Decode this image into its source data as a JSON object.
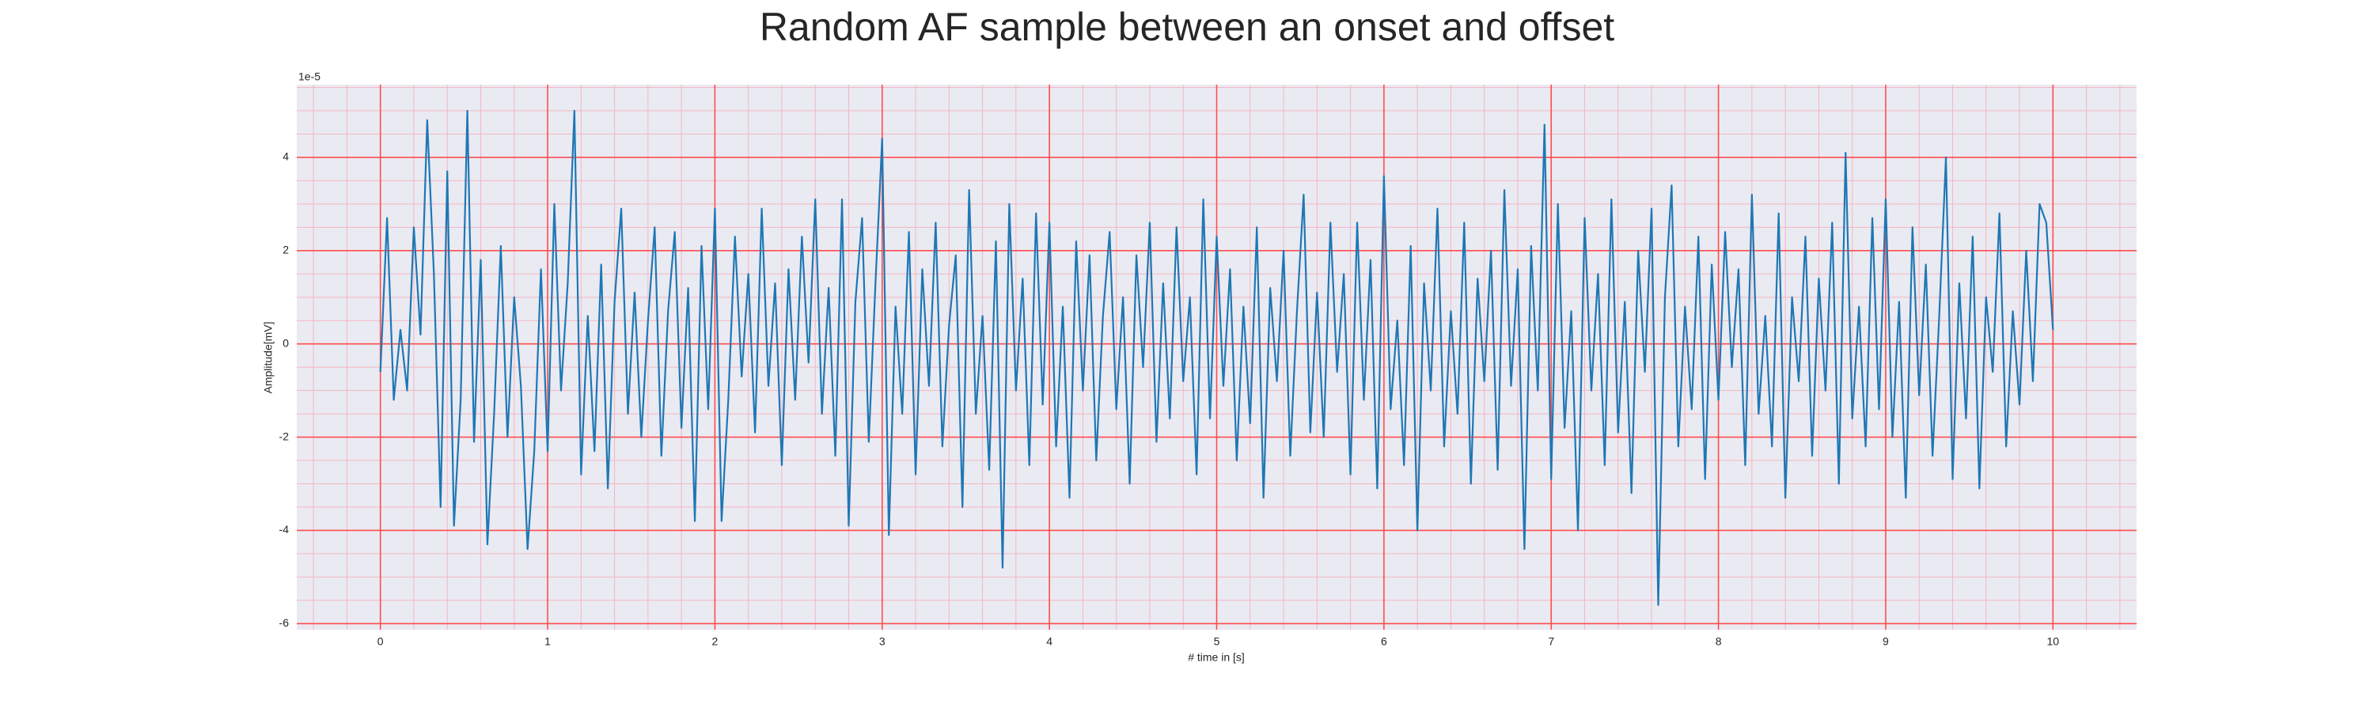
{
  "chart_data": {
    "type": "line",
    "title": "Random AF sample between an onset and offset",
    "xlabel": "# time in [s]",
    "ylabel": "Amplitude[mV]",
    "y_offset_label": "1e-5",
    "xlim": [
      -0.5,
      10.5
    ],
    "ylim": [
      -6.13,
      5.56
    ],
    "xticks": [
      0,
      1,
      2,
      3,
      4,
      5,
      6,
      7,
      8,
      9,
      10
    ],
    "yticks": [
      -6,
      -4,
      -2,
      0,
      2,
      4
    ],
    "xminorticks": [
      -0.4,
      -0.2,
      0.2,
      0.4,
      0.6,
      0.8,
      1.2,
      1.4,
      1.6,
      1.8,
      2.2,
      2.4,
      2.6,
      2.8,
      3.2,
      3.4,
      3.6,
      3.8,
      4.2,
      4.4,
      4.6,
      4.8,
      5.2,
      5.4,
      5.6,
      5.8,
      6.2,
      6.4,
      6.6,
      6.8,
      7.2,
      7.4,
      7.6,
      7.8,
      8.2,
      8.4,
      8.6,
      8.8,
      9.2,
      9.4,
      9.6,
      9.8,
      10.2,
      10.4
    ],
    "yminorticks": [
      -5.5,
      -5,
      -4.5,
      -3.5,
      -3,
      -2.5,
      -1.5,
      -1,
      -0.5,
      0.5,
      1,
      1.5,
      2.5,
      3,
      3.5,
      4.5,
      5,
      5.5
    ],
    "grid": true,
    "minor_grid": true,
    "grid_color": "#ff4d4d",
    "minor_grid_color": "#f4b6c2",
    "background": "#eaeaf2",
    "series": [
      {
        "color": "#1f77b4",
        "x": [
          0,
          0.04,
          0.08,
          0.12,
          0.16,
          0.2,
          0.24,
          0.28,
          0.32,
          0.36,
          0.4,
          0.44,
          0.48,
          0.52,
          0.56,
          0.6,
          0.64,
          0.68,
          0.72,
          0.76,
          0.8,
          0.84,
          0.88,
          0.92,
          0.96,
          1,
          1.04,
          1.08,
          1.12,
          1.16,
          1.2,
          1.24,
          1.28,
          1.32,
          1.36,
          1.4,
          1.44,
          1.48,
          1.52,
          1.56,
          1.6,
          1.64,
          1.68,
          1.72,
          1.76,
          1.8,
          1.84,
          1.88,
          1.92,
          1.96,
          2,
          2.04,
          2.08,
          2.12,
          2.16,
          2.2,
          2.24,
          2.28,
          2.32,
          2.36,
          2.4,
          2.44,
          2.48,
          2.52,
          2.56,
          2.6,
          2.64,
          2.68,
          2.72,
          2.76,
          2.8,
          2.84,
          2.88,
          2.92,
          2.96,
          3,
          3.04,
          3.08,
          3.12,
          3.16,
          3.2,
          3.24,
          3.28,
          3.32,
          3.36,
          3.4,
          3.44,
          3.48,
          3.52,
          3.56,
          3.6,
          3.64,
          3.68,
          3.72,
          3.76,
          3.8,
          3.84,
          3.88,
          3.92,
          3.96,
          4,
          4.04,
          4.08,
          4.12,
          4.16,
          4.2,
          4.24,
          4.28,
          4.32,
          4.36,
          4.4,
          4.44,
          4.48,
          4.52,
          4.56,
          4.6,
          4.64,
          4.68,
          4.72,
          4.76,
          4.8,
          4.84,
          4.88,
          4.92,
          4.96,
          5,
          5.04,
          5.08,
          5.12,
          5.16,
          5.2,
          5.24,
          5.28,
          5.32,
          5.36,
          5.4,
          5.44,
          5.48,
          5.52,
          5.56,
          5.6,
          5.64,
          5.68,
          5.72,
          5.76,
          5.8,
          5.84,
          5.88,
          5.92,
          5.96,
          6,
          6.04,
          6.08,
          6.12,
          6.16,
          6.2,
          6.24,
          6.28,
          6.32,
          6.36,
          6.4,
          6.44,
          6.48,
          6.52,
          6.56,
          6.6,
          6.64,
          6.68,
          6.72,
          6.76,
          6.8,
          6.84,
          6.88,
          6.92,
          6.96,
          7,
          7.04,
          7.08,
          7.12,
          7.16,
          7.2,
          7.24,
          7.28,
          7.32,
          7.36,
          7.4,
          7.44,
          7.48,
          7.52,
          7.56,
          7.6,
          7.64,
          7.68,
          7.72,
          7.76,
          7.8,
          7.84,
          7.88,
          7.92,
          7.96,
          8,
          8.04,
          8.08,
          8.12,
          8.16,
          8.2,
          8.24,
          8.28,
          8.32,
          8.36,
          8.4,
          8.44,
          8.48,
          8.52,
          8.56,
          8.6,
          8.64,
          8.68,
          8.72,
          8.76,
          8.8,
          8.84,
          8.88,
          8.92,
          8.96,
          9,
          9.04,
          9.08,
          9.12,
          9.16,
          9.2,
          9.24,
          9.28,
          9.32,
          9.36,
          9.4,
          9.44,
          9.48,
          9.52,
          9.56,
          9.6,
          9.64,
          9.68,
          9.72,
          9.76,
          9.8,
          9.84,
          9.88,
          9.92,
          9.96,
          10
        ],
        "values": [
          -0.6,
          2.7,
          -1.2,
          0.3,
          -1.0,
          2.5,
          0.2,
          4.8,
          1.5,
          -3.5,
          3.7,
          -3.9,
          -1.2,
          5.0,
          -2.1,
          1.8,
          -4.3,
          -1.5,
          2.1,
          -2.0,
          1.0,
          -0.9,
          -4.4,
          -2.3,
          1.6,
          -2.3,
          3.0,
          -1.0,
          1.3,
          5.0,
          -2.8,
          0.6,
          -2.3,
          1.7,
          -3.1,
          0.9,
          2.9,
          -1.5,
          1.1,
          -2.0,
          0.5,
          2.5,
          -2.4,
          0.7,
          2.4,
          -1.8,
          1.2,
          -3.8,
          2.1,
          -1.4,
          2.9,
          -3.8,
          -1.2,
          2.3,
          -0.7,
          1.5,
          -1.9,
          2.9,
          -0.9,
          1.3,
          -2.6,
          1.6,
          -1.2,
          2.3,
          -0.4,
          3.1,
          -1.5,
          1.2,
          -2.4,
          3.1,
          -3.9,
          0.9,
          2.7,
          -2.1,
          1.3,
          4.4,
          -4.1,
          0.8,
          -1.5,
          2.4,
          -2.8,
          1.6,
          -0.9,
          2.6,
          -2.2,
          0.4,
          1.9,
          -3.5,
          3.3,
          -1.5,
          0.6,
          -2.7,
          2.2,
          -4.8,
          3.0,
          -1.0,
          1.4,
          -2.6,
          2.8,
          -1.3,
          2.6,
          -2.2,
          0.8,
          -3.3,
          2.2,
          -1.0,
          1.9,
          -2.5,
          0.6,
          2.4,
          -1.4,
          1.0,
          -3.0,
          1.9,
          -0.5,
          2.6,
          -2.1,
          1.3,
          -1.6,
          2.5,
          -0.8,
          1.0,
          -2.8,
          3.1,
          -1.6,
          2.3,
          -0.9,
          1.6,
          -2.5,
          0.8,
          -1.7,
          2.5,
          -3.3,
          1.2,
          -0.8,
          2.0,
          -2.4,
          0.7,
          3.2,
          -1.9,
          1.1,
          -2.0,
          2.6,
          -0.6,
          1.5,
          -2.8,
          2.6,
          -1.2,
          1.8,
          -3.1,
          3.6,
          -1.4,
          0.5,
          -2.6,
          2.1,
          -4.0,
          1.3,
          -1.0,
          2.9,
          -2.2,
          0.7,
          -1.5,
          2.6,
          -3.0,
          1.4,
          -0.8,
          2.0,
          -2.7,
          3.3,
          -0.9,
          1.6,
          -4.4,
          2.1,
          -1.0,
          4.7,
          -2.9,
          3.0,
          -1.8,
          0.7,
          -4.0,
          2.7,
          -1.0,
          1.5,
          -2.6,
          3.1,
          -1.9,
          0.9,
          -3.2,
          2.0,
          -0.6,
          2.9,
          -5.6,
          1.0,
          3.4,
          -2.2,
          0.8,
          -1.4,
          2.3,
          -2.9,
          1.7,
          -1.2,
          2.4,
          -0.5,
          1.6,
          -2.6,
          3.2,
          -1.5,
          0.6,
          -2.2,
          2.8,
          -3.3,
          1.0,
          -0.8,
          2.3,
          -2.4,
          1.4,
          -1.0,
          2.6,
          -3.0,
          4.1,
          -1.6,
          0.8,
          -2.2,
          2.7,
          -1.4,
          3.1,
          -2.0,
          0.9,
          -3.3,
          2.5,
          -1.1,
          1.7,
          -2.4,
          0.6,
          4.0,
          -2.9,
          1.3,
          -1.6,
          2.3,
          -3.1,
          1.0,
          -0.6,
          2.8,
          -2.2,
          0.7,
          -1.3,
          2.0,
          -0.8,
          3.0,
          2.6,
          0.3
        ]
      }
    ]
  }
}
